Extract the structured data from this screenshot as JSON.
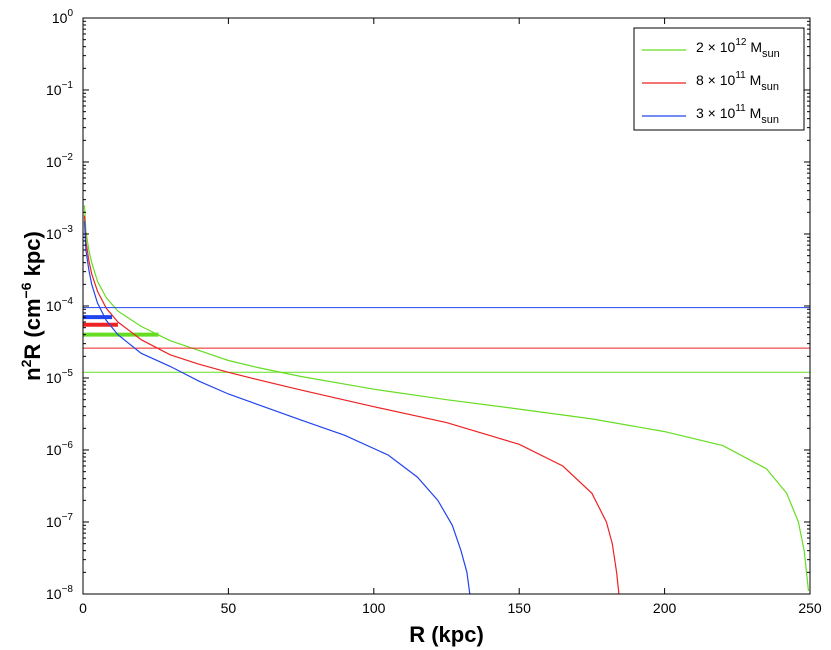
{
  "chart_data": {
    "type": "line",
    "title": "",
    "xlabel": "R (kpc)",
    "ylabel": {
      "prefix": "n",
      "sup": "2",
      "middle": "R (cm",
      "sup2": "−6",
      "suffix": " kpc)"
    },
    "xlim": [
      0,
      250
    ],
    "ylim": [
      1e-08,
      1
    ],
    "yscale": "log",
    "grid": false,
    "legend_position": "top-right",
    "x_ticks": [
      "0",
      "50",
      "100",
      "150",
      "200",
      "250"
    ],
    "y_ticks": [
      {
        "base": "10",
        "exp": "−8"
      },
      {
        "base": "10",
        "exp": "−7"
      },
      {
        "base": "10",
        "exp": "−6"
      },
      {
        "base": "10",
        "exp": "−5"
      },
      {
        "base": "10",
        "exp": "−4"
      },
      {
        "base": "10",
        "exp": "−3"
      },
      {
        "base": "10",
        "exp": "−2"
      },
      {
        "base": "10",
        "exp": "−1"
      },
      {
        "base": "10",
        "exp": "0"
      }
    ],
    "series": [
      {
        "name": "2 × 10^12 M_sun",
        "legend": {
          "pre": "2 × 10",
          "sup": "12",
          "mid": " M",
          "sub": "sun"
        },
        "color": "#66dd22",
        "hline": 1.2e-05,
        "bar": {
          "y": 4e-05,
          "x_end": 26
        },
        "x": [
          0.5,
          1,
          2,
          3,
          5,
          8,
          12,
          20,
          30,
          40,
          50,
          60,
          75,
          100,
          125,
          150,
          175,
          200,
          220,
          235,
          242,
          246,
          248,
          249.5
        ],
        "y": [
          0.0025,
          0.0011,
          0.0006,
          0.0004,
          0.00022,
          0.00013,
          8.5e-05,
          5.2e-05,
          3.3e-05,
          2.4e-05,
          1.75e-05,
          1.4e-05,
          1.05e-05,
          7e-06,
          5e-06,
          3.7e-06,
          2.7e-06,
          1.8e-06,
          1.15e-06,
          5.5e-07,
          2.5e-07,
          1e-07,
          4e-08,
          1.1e-08
        ]
      },
      {
        "name": "8 × 10^11 M_sun",
        "legend": {
          "pre": "8 × 10",
          "sup": "11",
          "mid": " M",
          "sub": "sun"
        },
        "color": "#ee2222",
        "hline": 2.6e-05,
        "bar": {
          "y": 5.5e-05,
          "x_end": 12
        },
        "x": [
          0.5,
          1,
          2,
          3,
          5,
          8,
          12,
          20,
          30,
          40,
          50,
          60,
          75,
          100,
          125,
          150,
          165,
          175,
          180,
          182,
          183.5,
          184.3
        ],
        "y": [
          0.0018,
          0.0008,
          0.00043,
          0.00028,
          0.00016,
          9.3e-05,
          6e-05,
          3.4e-05,
          2.1e-05,
          1.55e-05,
          1.2e-05,
          9.5e-06,
          6.8e-06,
          4e-06,
          2.4e-06,
          1.2e-06,
          6e-07,
          2.5e-07,
          1e-07,
          5e-08,
          2e-08,
          1e-08
        ]
      },
      {
        "name": "3 × 10^11 M_sun",
        "legend": {
          "pre": "3 × 10",
          "sup": "11",
          "mid": " M",
          "sub": "sun"
        },
        "color": "#2244ee",
        "hline": 9.5e-05,
        "bar": {
          "y": 7e-05,
          "x_end": 10
        },
        "x": [
          0.5,
          1,
          2,
          3,
          5,
          8,
          12,
          20,
          30,
          40,
          50,
          60,
          75,
          90,
          105,
          115,
          122,
          127,
          130,
          132,
          133
        ],
        "y": [
          0.0015,
          0.0006,
          0.00032,
          0.0002,
          0.00011,
          6.3e-05,
          4e-05,
          2.2e-05,
          1.45e-05,
          9e-06,
          6e-06,
          4.3e-06,
          2.6e-06,
          1.6e-06,
          8.5e-07,
          4.2e-07,
          2e-07,
          9e-08,
          4e-08,
          2e-08,
          1e-08
        ]
      }
    ]
  }
}
